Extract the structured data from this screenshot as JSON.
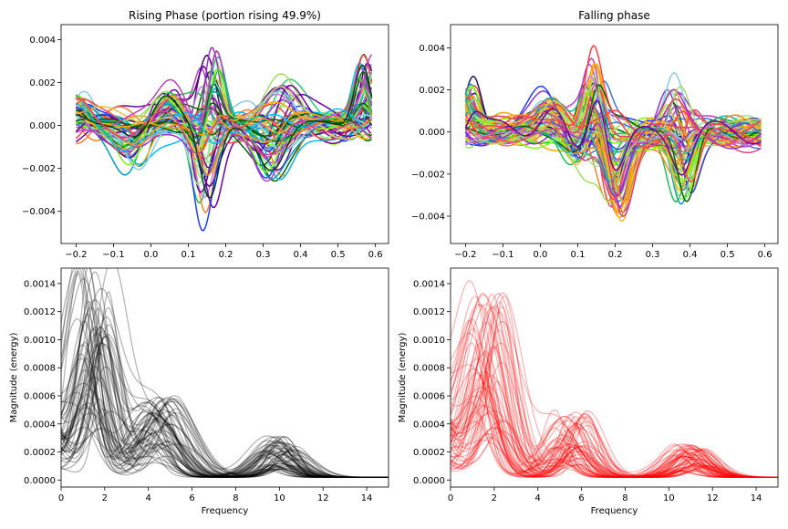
{
  "chart_data": [
    {
      "type": "line",
      "title": "Rising Phase (portion rising 49.9%)",
      "xlabel": "",
      "ylabel": "",
      "xlim": [
        -0.24,
        0.635
      ],
      "ylim": [
        -0.0055,
        0.0047
      ],
      "xticks": [
        -0.2,
        -0.1,
        0.0,
        0.1,
        0.2,
        0.3,
        0.4,
        0.5,
        0.6
      ],
      "xtick_labels": [
        "−0.2",
        "−0.1",
        "0.0",
        "0.1",
        "0.2",
        "0.3",
        "0.4",
        "0.5",
        "0.6"
      ],
      "yticks": [
        -0.004,
        -0.002,
        0.0,
        0.002,
        0.004
      ],
      "ytick_labels": [
        "−0.004",
        "−0.002",
        "0.000",
        "0.002",
        "0.004"
      ],
      "grid": false,
      "x_range": [
        -0.2,
        0.59
      ],
      "series_count": 60,
      "colormap": "gist_ncar-like multicolor",
      "features": [
        {
          "x": -0.2,
          "amp": 0.0012,
          "width": 0.04
        },
        {
          "x": -0.05,
          "amp": -0.0015,
          "width": 0.05
        },
        {
          "x": 0.05,
          "amp": 0.0012,
          "width": 0.05
        },
        {
          "x": 0.15,
          "amp": -0.0035,
          "width": 0.035
        },
        {
          "x": 0.16,
          "amp": 0.0032,
          "width": 0.03
        },
        {
          "x": 0.35,
          "amp": 0.0018,
          "width": 0.06
        },
        {
          "x": 0.33,
          "amp": -0.0022,
          "width": 0.05
        },
        {
          "x": 0.58,
          "amp": 0.0025,
          "width": 0.03
        }
      ]
    },
    {
      "type": "line",
      "title": "Falling phase",
      "xlabel": "",
      "ylabel": "",
      "xlim": [
        -0.24,
        0.635
      ],
      "ylim": [
        -0.0053,
        0.0051
      ],
      "xticks": [
        -0.2,
        -0.1,
        0.0,
        0.1,
        0.2,
        0.3,
        0.4,
        0.5,
        0.6
      ],
      "xtick_labels": [
        "−0.2",
        "−0.1",
        "0.0",
        "0.1",
        "0.2",
        "0.3",
        "0.4",
        "0.5",
        "0.6"
      ],
      "yticks": [
        -0.004,
        -0.002,
        0.0,
        0.002,
        0.004
      ],
      "ytick_labels": [
        "−0.004",
        "−0.002",
        "0.000",
        "0.002",
        "0.004"
      ],
      "grid": false,
      "x_range": [
        -0.2,
        0.59
      ],
      "series_count": 60,
      "colormap": "gist_ncar-like multicolor",
      "features": [
        {
          "x": -0.2,
          "amp": 0.0018,
          "width": 0.03
        },
        {
          "x": 0.03,
          "amp": 0.0013,
          "width": 0.05
        },
        {
          "x": 0.1,
          "amp": -0.0012,
          "width": 0.04
        },
        {
          "x": 0.14,
          "amp": 0.003,
          "width": 0.03
        },
        {
          "x": 0.2,
          "amp": -0.003,
          "width": 0.04
        },
        {
          "x": 0.37,
          "amp": 0.0022,
          "width": 0.035
        },
        {
          "x": 0.38,
          "amp": -0.003,
          "width": 0.035
        }
      ]
    },
    {
      "type": "line",
      "title": "",
      "xlabel": "Frequency",
      "ylabel": "Magnitude (energy)",
      "xlim": [
        0,
        15
      ],
      "ylim": [
        -5e-05,
        0.00151
      ],
      "xticks": [
        0,
        2,
        4,
        6,
        8,
        10,
        12,
        14
      ],
      "xtick_labels": [
        "0",
        "2",
        "4",
        "6",
        "8",
        "10",
        "12",
        "14"
      ],
      "yticks": [
        0.0,
        0.0002,
        0.0004,
        0.0006,
        0.0008,
        0.001,
        0.0012,
        0.0014
      ],
      "ytick_labels": [
        "0.0000",
        "0.0002",
        "0.0004",
        "0.0006",
        "0.0008",
        "0.0010",
        "0.0012",
        "0.0014"
      ],
      "grid": false,
      "line_color": "#000000",
      "line_alpha": 0.3,
      "series_count": 60,
      "peaks": [
        {
          "x": 1.5,
          "amp": 0.00125,
          "width": 0.9
        },
        {
          "x": 4.5,
          "amp": 0.0005,
          "width": 1.2
        },
        {
          "x": 10.0,
          "amp": 0.00025,
          "width": 1.0
        }
      ],
      "tail_value": 2e-05
    },
    {
      "type": "line",
      "title": "",
      "xlabel": "Frequency",
      "ylabel": "Magnitude (energy)",
      "xlim": [
        0,
        15
      ],
      "ylim": [
        -5e-05,
        0.00151
      ],
      "xticks": [
        0,
        2,
        4,
        6,
        8,
        10,
        12,
        14
      ],
      "xtick_labels": [
        "0",
        "2",
        "4",
        "6",
        "8",
        "10",
        "12",
        "14"
      ],
      "yticks": [
        0.0,
        0.0002,
        0.0004,
        0.0006,
        0.0008,
        0.001,
        0.0012,
        0.0014
      ],
      "ytick_labels": [
        "0.0000",
        "0.0002",
        "0.0004",
        "0.0006",
        "0.0008",
        "0.0010",
        "0.0012",
        "0.0014"
      ],
      "grid": false,
      "line_color": "#ff0000",
      "line_alpha": 0.3,
      "series_count": 60,
      "peaks": [
        {
          "x": 1.7,
          "amp": 0.0011,
          "width": 1.0
        },
        {
          "x": 5.5,
          "amp": 0.0004,
          "width": 1.0
        },
        {
          "x": 11.0,
          "amp": 0.0002,
          "width": 1.0
        }
      ],
      "tail_value": 2e-05
    }
  ]
}
